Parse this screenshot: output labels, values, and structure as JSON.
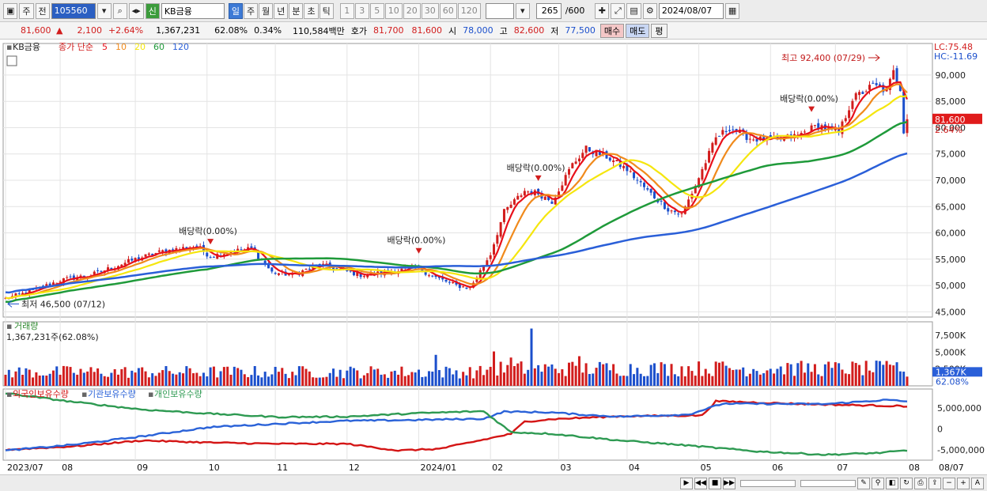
{
  "toolbar": {
    "market": "주",
    "mode": "전",
    "code": "105560",
    "name": "KB금융",
    "name_prefix": "신",
    "periods": [
      "일",
      "주",
      "월",
      "년",
      "분",
      "초",
      "틱"
    ],
    "active_period": "일",
    "minutes": [
      "1",
      "3",
      "5",
      "10",
      "20",
      "30",
      "60",
      "120"
    ],
    "count": "265",
    "count_total": "/600",
    "date": "2024/08/07"
  },
  "quote": {
    "price": "81,600",
    "arrow": "▲",
    "change": "2,100",
    "change_pct": "+2.64%",
    "volume": "1,367,231",
    "vol_ratio": "62.08%",
    "turnover_pct": "0.34%",
    "amount": "110,584백만",
    "hoga_label": "호가",
    "ask": "81,700",
    "bid": "81,600",
    "open_label": "시",
    "open": "78,000",
    "high_label": "고",
    "high": "82,600",
    "low_label": "저",
    "low": "77,500",
    "buy_label": "매수",
    "sell_label": "매도",
    "eval_label": "평"
  },
  "colors": {
    "up": "#d21d1d",
    "down": "#1b4fcc",
    "ma5": "#e8101a",
    "ma10": "#f08a1c",
    "ma20": "#f5e60e",
    "ma60": "#1f9a3a",
    "ma120": "#2a5fd8",
    "foreign": "#d41515",
    "inst": "#2a62d8",
    "indiv": "#2e9a52"
  },
  "chart_data": [
    {
      "type": "candlestick",
      "legend": {
        "stock": "KB금융",
        "label": "종가 단순",
        "periods": [
          "5",
          "10",
          "20",
          "60",
          "120"
        ]
      },
      "lc_label": "LC:75.48",
      "hc_label": "HC:-11.69",
      "ylim": [
        44000,
        96000
      ],
      "y_ticks": [
        45000,
        50000,
        55000,
        60000,
        65000,
        70000,
        75000,
        80000,
        85000,
        90000
      ],
      "y_tick_labels": [
        "45,000",
        "50,000",
        "55,000",
        "60,000",
        "65,000",
        "70,000",
        "75,000",
        "80,000",
        "85,000",
        "90,000"
      ],
      "current_price_label": "81,600",
      "current_change_label": "2.64%",
      "current_price": 81600,
      "high_annotation": "최고 92,400 (07/29)",
      "high_value": 92400,
      "low_annotation": "최저 46,500 (07/12)",
      "low_value": 46500,
      "dividend_annotations": [
        {
          "text": "배당락(0.00%)",
          "date_index": 60
        },
        {
          "text": "배당락(0.00%)",
          "date_index": 121
        },
        {
          "text": "배당락(0.00%)",
          "date_index": 156
        },
        {
          "text": "배당락(0.00%)",
          "date_index": 236
        }
      ],
      "x_labels": [
        "2023/07",
        "08",
        "09",
        "10",
        "11",
        "12",
        "2024/01",
        "02",
        "03",
        "04",
        "05",
        "06",
        "07",
        "08"
      ],
      "x_label_index": [
        0,
        16,
        38,
        59,
        79,
        100,
        121,
        142,
        162,
        182,
        203,
        224,
        243,
        264
      ],
      "right_x_label": "08/07",
      "close_keypoints": [
        [
          0,
          47500
        ],
        [
          8,
          49000
        ],
        [
          16,
          51000
        ],
        [
          25,
          52000
        ],
        [
          38,
          55000
        ],
        [
          46,
          56500
        ],
        [
          56,
          57500
        ],
        [
          60,
          55500
        ],
        [
          66,
          56500
        ],
        [
          72,
          57000
        ],
        [
          78,
          52500
        ],
        [
          84,
          52000
        ],
        [
          92,
          54000
        ],
        [
          98,
          53000
        ],
        [
          104,
          52000
        ],
        [
          112,
          52500
        ],
        [
          120,
          53500
        ],
        [
          126,
          51500
        ],
        [
          132,
          50000
        ],
        [
          136,
          49500
        ],
        [
          142,
          56000
        ],
        [
          146,
          64000
        ],
        [
          152,
          68000
        ],
        [
          156,
          67500
        ],
        [
          160,
          66000
        ],
        [
          166,
          73000
        ],
        [
          170,
          76000
        ],
        [
          176,
          74500
        ],
        [
          182,
          72000
        ],
        [
          188,
          68000
        ],
        [
          194,
          64500
        ],
        [
          198,
          63500
        ],
        [
          202,
          69000
        ],
        [
          208,
          78000
        ],
        [
          212,
          80000
        ],
        [
          218,
          78000
        ],
        [
          224,
          77500
        ],
        [
          232,
          78500
        ],
        [
          238,
          80500
        ],
        [
          244,
          79000
        ],
        [
          248,
          85500
        ],
        [
          254,
          88000
        ],
        [
          258,
          87000
        ],
        [
          260,
          90500
        ],
        [
          262,
          87500
        ],
        [
          263,
          79500
        ],
        [
          264,
          81600
        ]
      ]
    },
    {
      "type": "bar",
      "title": "거래량",
      "value_label": "1,367,231주(62.08%)",
      "y_tick_labels": [
        "2,500K",
        "5,000K",
        "7,500K"
      ],
      "y_ticks": [
        2500000,
        5000000,
        7500000
      ],
      "ylim": [
        0,
        9500000
      ],
      "current_label": "1,367K",
      "current_pct_label": "62.08%",
      "current_value": 1367231,
      "spikes": [
        [
          126,
          4600000
        ],
        [
          143,
          5100000
        ],
        [
          148,
          4200000
        ],
        [
          154,
          8500000
        ],
        [
          168,
          4400000
        ],
        [
          210,
          3600000
        ],
        [
          230,
          3200000
        ],
        [
          261,
          3500000
        ]
      ]
    },
    {
      "type": "line",
      "series": [
        {
          "name": "외국인보유수량",
          "color_key": "foreign",
          "keypoints": [
            [
              0,
              -5000000
            ],
            [
              20,
              -4200000
            ],
            [
              40,
              -2800000
            ],
            [
              60,
              -3300000
            ],
            [
              80,
              -3600000
            ],
            [
              100,
              -3600000
            ],
            [
              115,
              -5200000
            ],
            [
              127,
              -4800000
            ],
            [
              140,
              -2600000
            ],
            [
              148,
              -1200000
            ],
            [
              152,
              1700000
            ],
            [
              160,
              2300000
            ],
            [
              180,
              3000000
            ],
            [
              204,
              3200000
            ],
            [
              208,
              6600000
            ],
            [
              230,
              6000000
            ],
            [
              245,
              5700000
            ],
            [
              264,
              5400000
            ]
          ]
        },
        {
          "name": "기관보유수량",
          "color_key": "inst",
          "keypoints": [
            [
              0,
              -5200000
            ],
            [
              20,
              -3800000
            ],
            [
              40,
              -1800000
            ],
            [
              60,
              400000
            ],
            [
              80,
              1200000
            ],
            [
              100,
              1900000
            ],
            [
              120,
              2100000
            ],
            [
              140,
              2400000
            ],
            [
              146,
              4100000
            ],
            [
              160,
              3900000
            ],
            [
              170,
              3300000
            ],
            [
              180,
              2900000
            ],
            [
              200,
              3400000
            ],
            [
              210,
              6000000
            ],
            [
              240,
              5900000
            ],
            [
              258,
              6900000
            ],
            [
              264,
              6500000
            ]
          ]
        },
        {
          "name": "개인보유수량",
          "color_key": "indiv",
          "keypoints": [
            [
              0,
              8500000
            ],
            [
              20,
              6400000
            ],
            [
              40,
              4600000
            ],
            [
              60,
              3600000
            ],
            [
              80,
              2800000
            ],
            [
              100,
              2900000
            ],
            [
              120,
              3700000
            ],
            [
              140,
              4200000
            ],
            [
              148,
              -800000
            ],
            [
              160,
              -1200000
            ],
            [
              180,
              -2800000
            ],
            [
              200,
              -4000000
            ],
            [
              220,
              -5400000
            ],
            [
              240,
              -6200000
            ],
            [
              255,
              -5800000
            ],
            [
              264,
              -5200000
            ]
          ]
        }
      ],
      "y_tick_labels": [
        "5,000,000",
        "0",
        "-5,000,000"
      ],
      "y_ticks": [
        5000000,
        0,
        -5000000
      ],
      "ylim": [
        -7500000,
        9500000
      ]
    }
  ]
}
